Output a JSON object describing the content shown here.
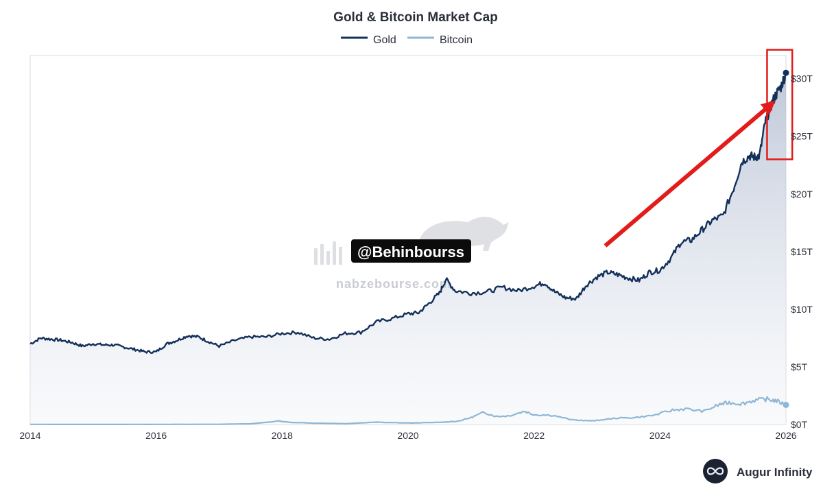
{
  "chart_data": {
    "type": "line",
    "title": "Gold & Bitcoin Market Cap",
    "xlabel": "",
    "ylabel": "",
    "xlim": [
      2014.0,
      2026.0
    ],
    "ylim": [
      0,
      32
    ],
    "y_unit": "trillion USD",
    "x_tick_labels": [
      "2014",
      "2016",
      "2018",
      "2020",
      "2022",
      "2024",
      "2026"
    ],
    "y_tick_labels": [
      "$0T",
      "$5T",
      "$10T",
      "$15T",
      "$20T",
      "$25T",
      "$30T"
    ],
    "legend": {
      "placement": "top-center"
    },
    "grid": false,
    "series": [
      {
        "name": "Gold",
        "color": "#13305a",
        "area_fill": true,
        "x": [
          2014.0,
          2014.17,
          2014.33,
          2014.5,
          2014.67,
          2014.83,
          2015.0,
          2015.17,
          2015.33,
          2015.5,
          2015.67,
          2015.83,
          2016.0,
          2016.17,
          2016.33,
          2016.5,
          2016.67,
          2016.83,
          2017.0,
          2017.25,
          2017.5,
          2017.75,
          2018.0,
          2018.25,
          2018.5,
          2018.75,
          2019.0,
          2019.25,
          2019.5,
          2019.75,
          2020.0,
          2020.17,
          2020.33,
          2020.5,
          2020.6,
          2020.75,
          2021.0,
          2021.25,
          2021.5,
          2021.75,
          2022.0,
          2022.17,
          2022.33,
          2022.5,
          2022.67,
          2022.83,
          2023.0,
          2023.17,
          2023.33,
          2023.5,
          2023.67,
          2023.83,
          2024.0,
          2024.17,
          2024.33,
          2024.5,
          2024.67,
          2024.83,
          2025.0,
          2025.17,
          2025.3,
          2025.42,
          2025.5,
          2025.58,
          2025.67,
          2025.75,
          2025.83,
          2025.92,
          2026.0
        ],
        "values": [
          7.0,
          7.5,
          7.4,
          7.3,
          7.1,
          6.8,
          7.0,
          6.9,
          6.9,
          6.7,
          6.5,
          6.3,
          6.3,
          7.0,
          7.3,
          7.7,
          7.6,
          7.2,
          6.8,
          7.3,
          7.6,
          7.6,
          7.9,
          8.0,
          7.5,
          7.4,
          7.9,
          8.0,
          8.9,
          9.2,
          9.6,
          9.7,
          10.5,
          11.4,
          12.6,
          11.6,
          11.4,
          11.5,
          11.9,
          11.6,
          12.0,
          12.3,
          11.5,
          11.0,
          10.9,
          12.1,
          12.8,
          13.2,
          13.0,
          12.7,
          12.5,
          13.2,
          13.4,
          14.4,
          15.8,
          16.0,
          16.9,
          17.7,
          18.1,
          20.5,
          22.8,
          23.3,
          23.2,
          23.3,
          26.2,
          27.5,
          28.5,
          29.3,
          30.5
        ]
      },
      {
        "name": "Bitcoin",
        "color": "#8fb6d6",
        "area_fill": false,
        "x": [
          2014.0,
          2015.0,
          2016.0,
          2017.0,
          2017.5,
          2017.95,
          2018.1,
          2018.5,
          2019.0,
          2019.5,
          2020.0,
          2020.5,
          2020.8,
          2021.0,
          2021.2,
          2021.4,
          2021.6,
          2021.85,
          2022.0,
          2022.3,
          2022.6,
          2022.9,
          2023.0,
          2023.3,
          2023.6,
          2023.9,
          2024.2,
          2024.4,
          2024.7,
          2024.95,
          2025.1,
          2025.3,
          2025.5,
          2025.7,
          2025.85,
          2026.0
        ],
        "values": [
          0.01,
          0.005,
          0.01,
          0.02,
          0.06,
          0.3,
          0.2,
          0.12,
          0.07,
          0.2,
          0.13,
          0.18,
          0.3,
          0.6,
          1.05,
          0.7,
          0.75,
          1.15,
          0.85,
          0.8,
          0.4,
          0.32,
          0.35,
          0.55,
          0.6,
          0.8,
          1.25,
          1.35,
          1.15,
          1.75,
          1.9,
          1.8,
          2.1,
          2.2,
          2.05,
          1.7
        ]
      }
    ],
    "annotations": {
      "arrow": {
        "from": [
          2023.13,
          15.5
        ],
        "to": [
          2025.75,
          27.7
        ],
        "color": "#e21b1b"
      },
      "highlight_box": {
        "x_range": [
          2025.7,
          2026.1
        ],
        "y_range": [
          23.0,
          32.5
        ],
        "color": "#e21b1b"
      }
    }
  },
  "legend": {
    "gold_label": "Gold",
    "bitcoin_label": "Bitcoin"
  },
  "watermark": {
    "handle": "@Behinbourss",
    "site": "nabzebourse.com"
  },
  "brand": {
    "name": "Augur Infinity"
  }
}
